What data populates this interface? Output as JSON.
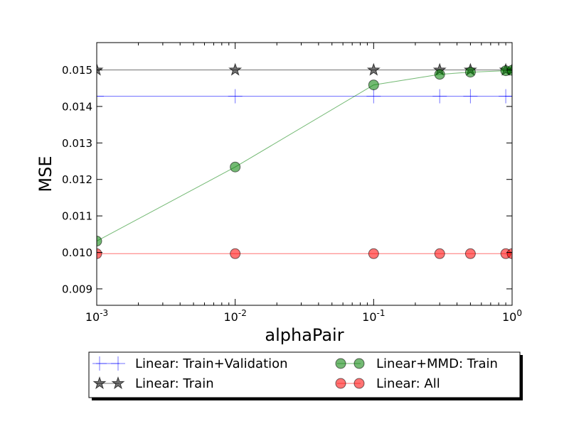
{
  "chart_data": {
    "type": "line",
    "xlabel": "alphaPair",
    "ylabel": "MSE",
    "xscale": "log",
    "xlim": [
      0.001,
      1
    ],
    "ylim": [
      0.00855,
      0.01575
    ],
    "grid": false,
    "legend_position": "below",
    "x_ticks": [
      {
        "value": 0.001,
        "base": "10",
        "exp": "-3"
      },
      {
        "value": 0.01,
        "base": "10",
        "exp": "-2"
      },
      {
        "value": 0.1,
        "base": "10",
        "exp": "-1"
      },
      {
        "value": 1,
        "base": "10",
        "exp": "0"
      }
    ],
    "y_ticks": [
      {
        "value": 0.009,
        "label": "0.009"
      },
      {
        "value": 0.01,
        "label": "0.010"
      },
      {
        "value": 0.011,
        "label": "0.011"
      },
      {
        "value": 0.012,
        "label": "0.012"
      },
      {
        "value": 0.013,
        "label": "0.013"
      },
      {
        "value": 0.014,
        "label": "0.014"
      },
      {
        "value": 0.015,
        "label": "0.015"
      }
    ],
    "x": [
      0.001,
      0.01,
      0.1,
      0.3,
      0.5,
      0.9,
      1.0
    ],
    "series": [
      {
        "name": "Linear: Train+Validation",
        "marker": "plus",
        "color": "#0000ff",
        "values": [
          0.01428,
          0.01428,
          0.01428,
          0.01428,
          0.01428,
          0.01428,
          0.01428
        ]
      },
      {
        "name": "Linear: Train",
        "marker": "star",
        "color": "#000000",
        "values": [
          0.015,
          0.015,
          0.015,
          0.015,
          0.015,
          0.015,
          0.015
        ]
      },
      {
        "name": "Linear+MMD: Train",
        "marker": "circle",
        "color": "#008000",
        "values": [
          0.01031,
          0.01234,
          0.01459,
          0.01488,
          0.01494,
          0.01498,
          0.01499
        ]
      },
      {
        "name": "Linear: All",
        "marker": "circle",
        "color": "#ff0000",
        "values": [
          0.009965,
          0.009965,
          0.009965,
          0.009965,
          0.009965,
          0.009965,
          0.009965
        ]
      }
    ]
  }
}
